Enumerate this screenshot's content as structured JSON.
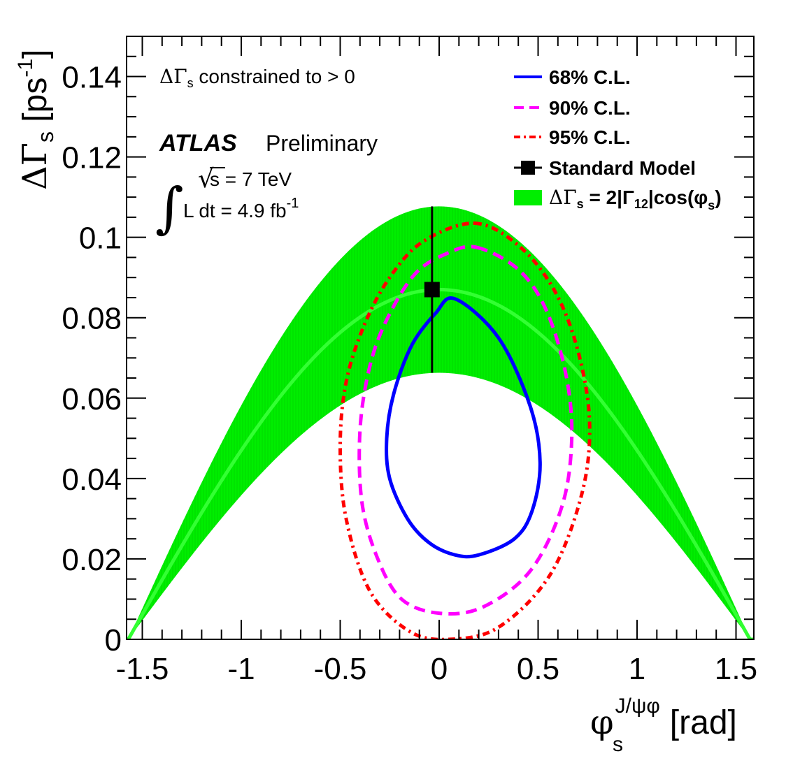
{
  "chart_data": {
    "type": "line",
    "xlabel": {
      "main": "φ",
      "sub": "s",
      "sup": "J/ψφ",
      "unit": "[rad]"
    },
    "ylabel": {
      "main": "ΔΓ",
      "sub": "s",
      "unit_open": "[ps",
      "unit_sup": "-1",
      "unit_close": "]"
    },
    "xlim": [
      -1.6,
      1.6
    ],
    "ylim": [
      0,
      0.15
    ],
    "x_ticks": [
      {
        "value": -1.5,
        "label": "-1.5"
      },
      {
        "value": -1.0,
        "label": "-1"
      },
      {
        "value": -0.5,
        "label": "-0.5"
      },
      {
        "value": 0.0,
        "label": "0"
      },
      {
        "value": 0.5,
        "label": "0.5"
      },
      {
        "value": 1.0,
        "label": "1"
      },
      {
        "value": 1.5,
        "label": "1.5"
      }
    ],
    "y_ticks": [
      {
        "value": 0.0,
        "label": "0"
      },
      {
        "value": 0.02,
        "label": "0.02"
      },
      {
        "value": 0.04,
        "label": "0.04"
      },
      {
        "value": 0.06,
        "label": "0.06"
      },
      {
        "value": 0.08,
        "label": "0.08"
      },
      {
        "value": 0.1,
        "label": "0.1"
      },
      {
        "value": 0.12,
        "label": "0.12"
      },
      {
        "value": 0.14,
        "label": "0.14"
      }
    ],
    "annotations": {
      "constraint": {
        "prefix": "ΔΓ",
        "sub": "s",
        "suffix": " constrained to > 0"
      },
      "experiment": "ATLAS",
      "status": "Preliminary",
      "integral_sign": "∫",
      "sqrt_sign": "√",
      "energy": "s = 7 TeV",
      "lumi": "L dt = 4.9 fb",
      "lumi_sup": "-1"
    },
    "band": {
      "name": "ΔΓs = 2|Γ12|cos(φs)",
      "center_amplitude": 0.087,
      "upper_amplitude": 0.1077,
      "lower_amplitude": 0.0663,
      "color": "#00ee00",
      "line_color": "#33ff33"
    },
    "contours": [
      {
        "name": "68% C.L.",
        "color": "#0000ff",
        "style": "solid",
        "points": [
          [
            0.08,
            0.0847
          ],
          [
            0.3,
            0.075
          ],
          [
            0.46,
            0.058
          ],
          [
            0.51,
            0.044
          ],
          [
            0.47,
            0.032
          ],
          [
            0.38,
            0.025
          ],
          [
            0.2,
            0.021
          ],
          [
            0.08,
            0.021
          ],
          [
            -0.05,
            0.024
          ],
          [
            -0.16,
            0.03
          ],
          [
            -0.25,
            0.04
          ],
          [
            -0.265,
            0.05
          ],
          [
            -0.23,
            0.061
          ],
          [
            -0.14,
            0.073
          ],
          [
            -0.02,
            0.081
          ]
        ]
      },
      {
        "name": "90% C.L.",
        "color": "#ff00ff",
        "style": "dashed",
        "points": [
          [
            0.19,
            0.0975
          ],
          [
            0.4,
            0.092
          ],
          [
            0.54,
            0.082
          ],
          [
            0.64,
            0.066
          ],
          [
            0.67,
            0.05
          ],
          [
            0.62,
            0.033
          ],
          [
            0.46,
            0.017
          ],
          [
            0.22,
            0.008
          ],
          [
            0.0,
            0.0065
          ],
          [
            -0.19,
            0.01
          ],
          [
            -0.31,
            0.02
          ],
          [
            -0.39,
            0.034
          ],
          [
            -0.4,
            0.052
          ],
          [
            -0.35,
            0.068
          ],
          [
            -0.26,
            0.08
          ],
          [
            -0.12,
            0.091
          ],
          [
            0.04,
            0.096
          ]
        ]
      },
      {
        "name": "95% C.L.",
        "color": "#ff0000",
        "style": "dashdot",
        "points": [
          [
            0.18,
            0.1035
          ],
          [
            0.4,
            0.098
          ],
          [
            0.58,
            0.087
          ],
          [
            0.7,
            0.072
          ],
          [
            0.76,
            0.054
          ],
          [
            0.72,
            0.036
          ],
          [
            0.56,
            0.016
          ],
          [
            0.3,
            0.003
          ],
          [
            0.05,
            0.0
          ],
          [
            -0.15,
            0.002
          ],
          [
            -0.35,
            0.012
          ],
          [
            -0.47,
            0.03
          ],
          [
            -0.5,
            0.048
          ],
          [
            -0.47,
            0.064
          ],
          [
            -0.38,
            0.078
          ],
          [
            -0.25,
            0.09
          ],
          [
            -0.08,
            0.099
          ]
        ]
      }
    ],
    "standard_model": {
      "name": "Standard Model",
      "x": -0.036,
      "y": 0.087,
      "y_err_low": 0.0663,
      "y_err_high": 0.1077
    },
    "legend": [
      {
        "key": "68",
        "label": "68% C.L."
      },
      {
        "key": "90",
        "label": "90% C.L."
      },
      {
        "key": "95",
        "label": "95% C.L."
      },
      {
        "key": "sm",
        "label": "Standard Model"
      },
      {
        "key": "band",
        "prefix": "ΔΓ",
        "sub1": "s",
        "mid": " = 2|Γ",
        "sub2": "12",
        "mid2": "|cos(φ",
        "sub3": "s",
        "end": ")"
      }
    ]
  }
}
